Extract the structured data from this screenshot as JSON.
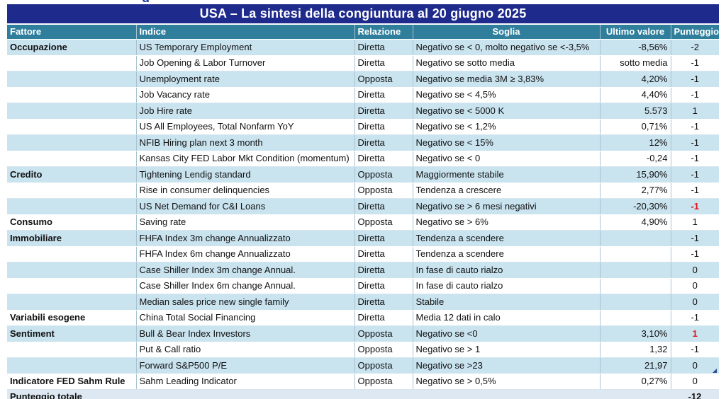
{
  "title_fragment": "g",
  "title": "USA – La sintesi della congiuntura al 20 giugno 2025",
  "headers": {
    "factor": "Fattore",
    "indicator": "Indice",
    "relation": "Relazione",
    "threshold": "Soglia",
    "last_value": "Ultimo valore",
    "score": "Punteggio"
  },
  "rows": [
    {
      "factor": "Occupazione",
      "indicator": "US Temporary Employment",
      "relation": "Diretta",
      "threshold": "Negativo se < 0, molto negativo se <-3,5%",
      "last_value": "-8,56%",
      "score": "-2",
      "highlight": false
    },
    {
      "factor": "",
      "indicator": "Job Opening & Labor Turnover",
      "relation": "Diretta",
      "threshold": "Negativo se sotto media",
      "last_value": "sotto media",
      "score": "-1",
      "highlight": false
    },
    {
      "factor": "",
      "indicator": "Unemployment rate",
      "relation": "Opposta",
      "threshold": "Negativo se media 3M ≥ 3,83%",
      "last_value": "4,20%",
      "score": "-1",
      "highlight": false
    },
    {
      "factor": "",
      "indicator": "Job Vacancy rate",
      "relation": "Diretta",
      "threshold": "Negativo se < 4,5%",
      "last_value": "4,40%",
      "score": "-1",
      "highlight": false
    },
    {
      "factor": "",
      "indicator": "Job Hire rate",
      "relation": "Diretta",
      "threshold": "Negativo se < 5000 K",
      "last_value": "5.573",
      "score": "1",
      "highlight": false
    },
    {
      "factor": "",
      "indicator": "US All Employees, Total Nonfarm YoY",
      "relation": "Diretta",
      "threshold": "Negativo se < 1,2%",
      "last_value": "0,71%",
      "score": "-1",
      "highlight": false
    },
    {
      "factor": "",
      "indicator": "NFIB Hiring plan next 3 month",
      "relation": "Diretta",
      "threshold": "Negativo se < 15%",
      "last_value": "12%",
      "score": "-1",
      "highlight": false
    },
    {
      "factor": "",
      "indicator": "Kansas City FED Labor Mkt Condition (momentum)",
      "relation": "Diretta",
      "threshold": "Negativo se < 0",
      "last_value": "-0,24",
      "score": "-1",
      "highlight": false
    },
    {
      "factor": "Credito",
      "indicator": "Tightening Lendig standard",
      "relation": "Opposta",
      "threshold": "Maggiormente stabile",
      "last_value": "15,90%",
      "score": "-1",
      "highlight": false
    },
    {
      "factor": "",
      "indicator": "Rise in consumer delinquencies",
      "relation": "Opposta",
      "threshold": "Tendenza a crescere",
      "last_value": "2,77%",
      "score": "-1",
      "highlight": false
    },
    {
      "factor": "",
      "indicator": "US Net Demand for C&I Loans",
      "relation": "Diretta",
      "threshold": "Negativo se > 6 mesi negativi",
      "last_value": "-20,30%",
      "score": "-1",
      "highlight": true
    },
    {
      "factor": "Consumo",
      "indicator": "Saving rate",
      "relation": "Opposta",
      "threshold": "Negativo se > 6%",
      "last_value": "4,90%",
      "score": "1",
      "highlight": false
    },
    {
      "factor": "Immobiliare",
      "indicator": "FHFA Index 3m change Annualizzato",
      "relation": "Diretta",
      "threshold": "Tendenza a scendere",
      "last_value": "",
      "score": "-1",
      "highlight": false
    },
    {
      "factor": "",
      "indicator": "FHFA Index 6m change Annualizzato",
      "relation": "Diretta",
      "threshold": "Tendenza a scendere",
      "last_value": "",
      "score": "-1",
      "highlight": false
    },
    {
      "factor": "",
      "indicator": "Case Shiller Index 3m change Annual.",
      "relation": "Diretta",
      "threshold": "In fase di cauto rialzo",
      "last_value": "",
      "score": "0",
      "highlight": false
    },
    {
      "factor": "",
      "indicator": "Case Shiller Index 6m change Annual.",
      "relation": "Diretta",
      "threshold": "In fase di cauto rialzo",
      "last_value": "",
      "score": "0",
      "highlight": false
    },
    {
      "factor": "",
      "indicator": "Median sales price new single family",
      "relation": "Diretta",
      "threshold": "Stabile",
      "last_value": "",
      "score": "0",
      "highlight": false
    },
    {
      "factor": "Variabili esogene",
      "indicator": "China Total Social Financing",
      "relation": "Diretta",
      "threshold": "Media 12 dati in calo",
      "last_value": "",
      "score": "-1",
      "highlight": false
    },
    {
      "factor": "Sentiment",
      "indicator": "Bull & Bear Index Investors",
      "relation": "Opposta",
      "threshold": "Negativo se <0",
      "last_value": "3,10%",
      "score": "1",
      "highlight": true
    },
    {
      "factor": "",
      "indicator": "Put & Call ratio",
      "relation": "Opposta",
      "threshold": "Negativo se > 1",
      "last_value": "1,32",
      "score": "-1",
      "highlight": false
    },
    {
      "factor": "",
      "indicator": "Forward S&P500 P/E",
      "relation": "Opposta",
      "threshold": "Negativo se >23",
      "last_value": "21,97",
      "score": "0",
      "highlight": false
    },
    {
      "factor": "Indicatore FED Sahm Rule",
      "indicator": "Sahm Leading Indicator",
      "relation": "Opposta",
      "threshold": "Negativo se > 0,5%",
      "last_value": "0,27%",
      "score": "0",
      "highlight": false
    }
  ],
  "total": {
    "label": "Punteggio totale",
    "score": "-12"
  },
  "colors": {
    "title_bg": "#1e2a8c",
    "header_bg": "#2f7f9c",
    "row_alt_bg": "#c9e3ef",
    "negative_highlight": "#e0141b"
  }
}
